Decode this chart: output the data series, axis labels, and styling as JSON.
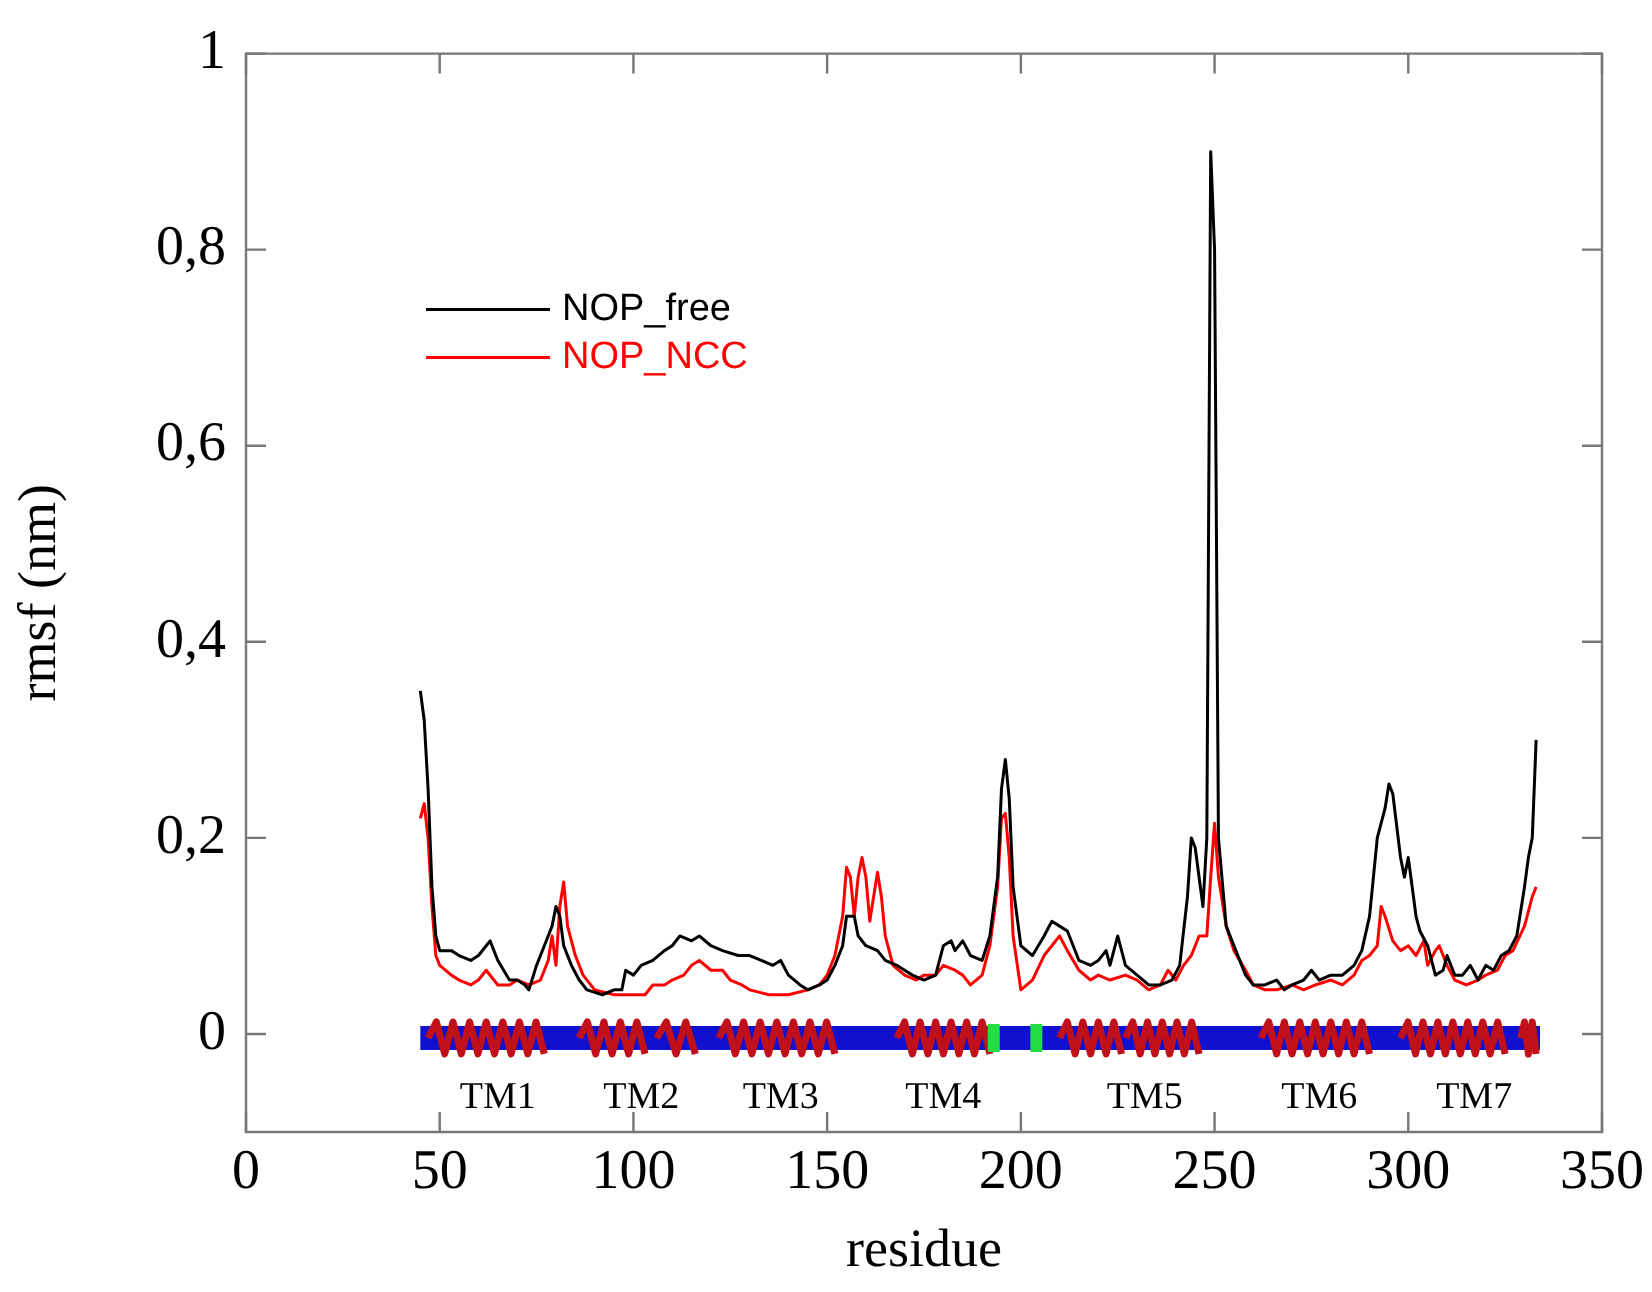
{
  "chart_data": {
    "type": "line",
    "xlabel": "residue",
    "ylabel": "rmsf (nm)",
    "xlim": [
      0,
      350
    ],
    "xticks": [
      0,
      50,
      100,
      150,
      200,
      250,
      300,
      350
    ],
    "ylim": [
      -0.1,
      1
    ],
    "yticks": [
      {
        "value": 0,
        "label": "0"
      },
      {
        "value": 0.2,
        "label": "0,2"
      },
      {
        "value": 0.4,
        "label": "0,4"
      },
      {
        "value": 0.6,
        "label": "0,6"
      },
      {
        "value": 0.8,
        "label": "0,8"
      },
      {
        "value": 1,
        "label": "1"
      }
    ],
    "grid": false,
    "legend": "top left",
    "marker": "none",
    "line_style": "solid",
    "annotations": [
      "TM1",
      "TM2",
      "TM3",
      "TM4",
      "TM5",
      "TM6",
      "TM7"
    ],
    "series": [
      {
        "name": "NOP_free",
        "color": "#000000",
        "x": [
          45,
          46,
          47,
          48,
          49,
          50,
          53,
          55,
          58,
          60,
          62,
          63,
          65,
          68,
          70,
          72,
          73,
          75,
          77,
          78,
          79,
          80,
          81,
          82,
          84,
          86,
          88,
          92,
          95,
          97,
          98,
          100,
          102,
          105,
          108,
          110,
          112,
          115,
          117,
          120,
          123,
          127,
          130,
          133,
          136,
          138,
          140,
          143,
          145,
          148,
          150,
          152,
          154,
          155,
          157,
          158,
          160,
          163,
          165,
          168,
          170,
          172,
          175,
          178,
          180,
          182,
          183,
          185,
          187,
          190,
          192,
          194,
          195,
          196,
          197,
          198,
          200,
          203,
          206,
          208,
          210,
          212,
          215,
          218,
          220,
          222,
          223,
          225,
          227,
          230,
          233,
          236,
          239,
          241,
          243,
          244,
          245,
          247,
          248,
          249,
          250,
          251,
          253,
          255,
          258,
          260,
          263,
          266,
          268,
          270,
          273,
          275,
          277,
          280,
          283,
          286,
          288,
          290,
          292,
          294,
          295,
          296,
          298,
          299,
          300,
          302,
          303,
          305,
          307,
          309,
          310,
          312,
          314,
          316,
          318,
          320,
          322,
          324,
          326,
          328,
          330,
          331,
          332,
          333
        ],
        "values": [
          0.35,
          0.32,
          0.25,
          0.15,
          0.1,
          0.085,
          0.085,
          0.08,
          0.075,
          0.08,
          0.09,
          0.095,
          0.075,
          0.055,
          0.055,
          0.05,
          0.045,
          0.07,
          0.09,
          0.1,
          0.11,
          0.13,
          0.12,
          0.09,
          0.07,
          0.055,
          0.045,
          0.04,
          0.045,
          0.045,
          0.065,
          0.06,
          0.07,
          0.075,
          0.085,
          0.09,
          0.1,
          0.095,
          0.1,
          0.09,
          0.085,
          0.08,
          0.08,
          0.075,
          0.07,
          0.075,
          0.06,
          0.05,
          0.045,
          0.05,
          0.055,
          0.07,
          0.09,
          0.12,
          0.12,
          0.1,
          0.09,
          0.085,
          0.075,
          0.07,
          0.065,
          0.06,
          0.055,
          0.06,
          0.09,
          0.095,
          0.085,
          0.095,
          0.08,
          0.075,
          0.1,
          0.16,
          0.25,
          0.28,
          0.24,
          0.15,
          0.09,
          0.08,
          0.1,
          0.115,
          0.11,
          0.105,
          0.075,
          0.07,
          0.075,
          0.085,
          0.07,
          0.1,
          0.07,
          0.06,
          0.05,
          0.05,
          0.055,
          0.07,
          0.14,
          0.2,
          0.19,
          0.13,
          0.2,
          0.9,
          0.8,
          0.2,
          0.11,
          0.09,
          0.06,
          0.05,
          0.05,
          0.055,
          0.045,
          0.05,
          0.055,
          0.065,
          0.055,
          0.06,
          0.06,
          0.07,
          0.085,
          0.12,
          0.2,
          0.23,
          0.255,
          0.245,
          0.18,
          0.16,
          0.18,
          0.12,
          0.105,
          0.09,
          0.06,
          0.065,
          0.08,
          0.06,
          0.06,
          0.07,
          0.055,
          0.07,
          0.065,
          0.08,
          0.085,
          0.1,
          0.15,
          0.18,
          0.2,
          0.3
        ]
      },
      {
        "name": "NOP_NCC",
        "color": "#ff0000",
        "x": [
          45,
          46,
          47,
          48,
          49,
          50,
          53,
          55,
          58,
          60,
          62,
          65,
          68,
          70,
          73,
          76,
          78,
          79,
          80,
          81,
          82,
          83,
          85,
          87,
          90,
          95,
          100,
          103,
          105,
          108,
          110,
          113,
          115,
          117,
          120,
          123,
          125,
          128,
          130,
          135,
          140,
          145,
          148,
          150,
          152,
          154,
          155,
          156,
          157,
          158,
          159,
          160,
          161,
          162,
          163,
          164,
          165,
          167,
          170,
          173,
          175,
          178,
          180,
          183,
          185,
          187,
          190,
          192,
          194,
          195,
          196,
          197,
          198,
          200,
          203,
          206,
          208,
          210,
          212,
          215,
          218,
          220,
          223,
          227,
          230,
          233,
          236,
          238,
          240,
          242,
          244,
          246,
          248,
          249,
          250,
          251,
          253,
          255,
          258,
          260,
          263,
          266,
          270,
          273,
          276,
          280,
          283,
          286,
          288,
          290,
          292,
          293,
          294,
          296,
          298,
          300,
          302,
          304,
          305,
          307,
          308,
          310,
          312,
          315,
          318,
          320,
          323,
          325,
          327,
          330,
          332,
          333
        ],
        "values": [
          0.22,
          0.235,
          0.2,
          0.13,
          0.08,
          0.07,
          0.06,
          0.055,
          0.05,
          0.055,
          0.065,
          0.05,
          0.05,
          0.055,
          0.05,
          0.055,
          0.075,
          0.1,
          0.07,
          0.13,
          0.155,
          0.11,
          0.08,
          0.06,
          0.045,
          0.04,
          0.04,
          0.04,
          0.05,
          0.05,
          0.055,
          0.06,
          0.07,
          0.075,
          0.065,
          0.065,
          0.055,
          0.05,
          0.045,
          0.04,
          0.04,
          0.045,
          0.05,
          0.06,
          0.08,
          0.12,
          0.17,
          0.16,
          0.12,
          0.16,
          0.18,
          0.16,
          0.115,
          0.14,
          0.165,
          0.14,
          0.1,
          0.07,
          0.06,
          0.055,
          0.06,
          0.06,
          0.07,
          0.065,
          0.06,
          0.05,
          0.06,
          0.09,
          0.15,
          0.22,
          0.225,
          0.18,
          0.1,
          0.045,
          0.055,
          0.08,
          0.09,
          0.1,
          0.085,
          0.065,
          0.055,
          0.06,
          0.055,
          0.06,
          0.055,
          0.045,
          0.05,
          0.065,
          0.055,
          0.07,
          0.08,
          0.1,
          0.1,
          0.16,
          0.215,
          0.16,
          0.11,
          0.085,
          0.065,
          0.05,
          0.045,
          0.045,
          0.05,
          0.045,
          0.05,
          0.055,
          0.05,
          0.06,
          0.075,
          0.08,
          0.09,
          0.13,
          0.12,
          0.095,
          0.085,
          0.09,
          0.08,
          0.095,
          0.07,
          0.085,
          0.09,
          0.07,
          0.055,
          0.05,
          0.055,
          0.06,
          0.065,
          0.08,
          0.085,
          0.11,
          0.14,
          0.15
        ]
      }
    ]
  }
}
